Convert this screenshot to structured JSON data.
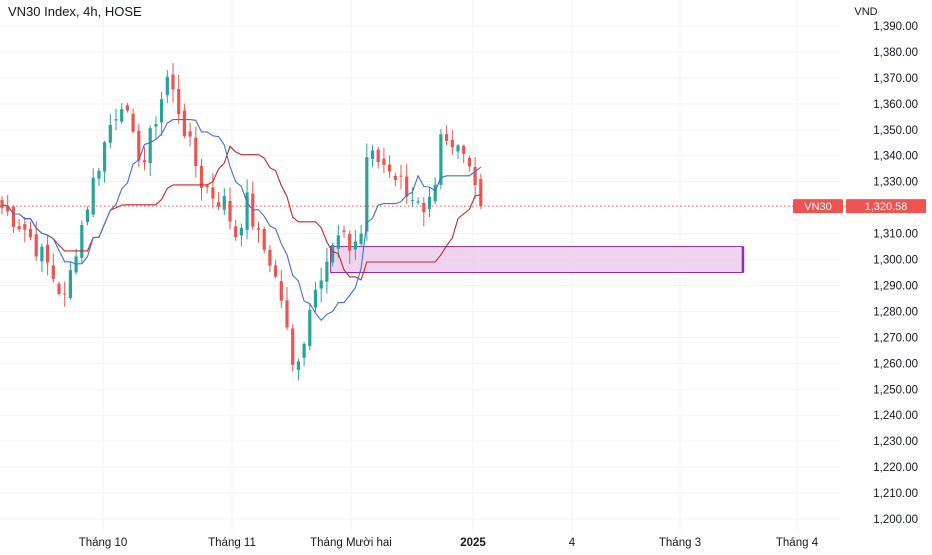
{
  "header": {
    "title": "VN30 Index, 4h, HOSE"
  },
  "colors": {
    "up": "#26a69a",
    "down": "#ef5350",
    "blue_line": "#3f6fdc",
    "red_line": "#c62828",
    "zone_fill": "#e8c6ea",
    "zone_border": "#9c27b0",
    "price_line": "#ef5350",
    "grid": "#f0f3fa",
    "axis_text": "#131722"
  },
  "chart_data": {
    "type": "candlestick",
    "title": "VN30 Index, 4h, HOSE",
    "y_unit": "VND",
    "ylim": [
      1195,
      1395
    ],
    "y_ticks": [
      "1,390.00",
      "1,380.00",
      "1,370.00",
      "1,360.00",
      "1,350.00",
      "1,340.00",
      "1,330.00",
      "1,310.00",
      "1,300.00",
      "1,290.00",
      "1,280.00",
      "1,270.00",
      "1,260.00",
      "1,250.00",
      "1,240.00",
      "1,230.00",
      "1,220.00",
      "1,210.00",
      "1,200.00"
    ],
    "x_ticks": [
      "Tháng 10",
      "Tháng 11",
      "Tháng Mười hai",
      "2025",
      "4",
      "Tháng 3",
      "Tháng 4"
    ],
    "x_ticks_bold": [
      "2025"
    ],
    "grid": true,
    "last_price": {
      "label": "VN30",
      "value": 1320.58,
      "value_label": "1,320.58"
    },
    "zone": {
      "from_bar": 58,
      "to": "Tháng 3",
      "low": 1295,
      "high": 1305
    },
    "anchors": [
      [
        0,
        1320
      ],
      [
        4,
        1312
      ],
      [
        8,
        1298
      ],
      [
        11,
        1284
      ],
      [
        13,
        1305
      ],
      [
        16,
        1330
      ],
      [
        19,
        1352
      ],
      [
        21,
        1362
      ],
      [
        23,
        1345
      ],
      [
        25,
        1338
      ],
      [
        27,
        1355
      ],
      [
        29,
        1370
      ],
      [
        31,
        1358
      ],
      [
        33,
        1343
      ],
      [
        35,
        1330
      ],
      [
        37,
        1325
      ],
      [
        39,
        1322
      ],
      [
        41,
        1310
      ],
      [
        43,
        1322
      ],
      [
        45,
        1308
      ],
      [
        47,
        1300
      ],
      [
        49,
        1285
      ],
      [
        51,
        1258
      ],
      [
        53,
        1270
      ],
      [
        55,
        1292
      ],
      [
        57,
        1300
      ],
      [
        59,
        1308
      ],
      [
        61,
        1305
      ],
      [
        63,
        1310
      ],
      [
        64,
        1340
      ],
      [
        66,
        1338
      ],
      [
        68,
        1336
      ],
      [
        70,
        1330
      ],
      [
        72,
        1325
      ],
      [
        74,
        1315
      ],
      [
        76,
        1325
      ],
      [
        77,
        1345
      ],
      [
        79,
        1342
      ],
      [
        81,
        1345
      ],
      [
        83,
        1330
      ],
      [
        84,
        1321
      ]
    ],
    "series": [
      {
        "name": "",
        "type": "tenkan",
        "color": "#3f6fdc"
      },
      {
        "name": "",
        "type": "kijun",
        "color": "#c62828"
      }
    ]
  }
}
